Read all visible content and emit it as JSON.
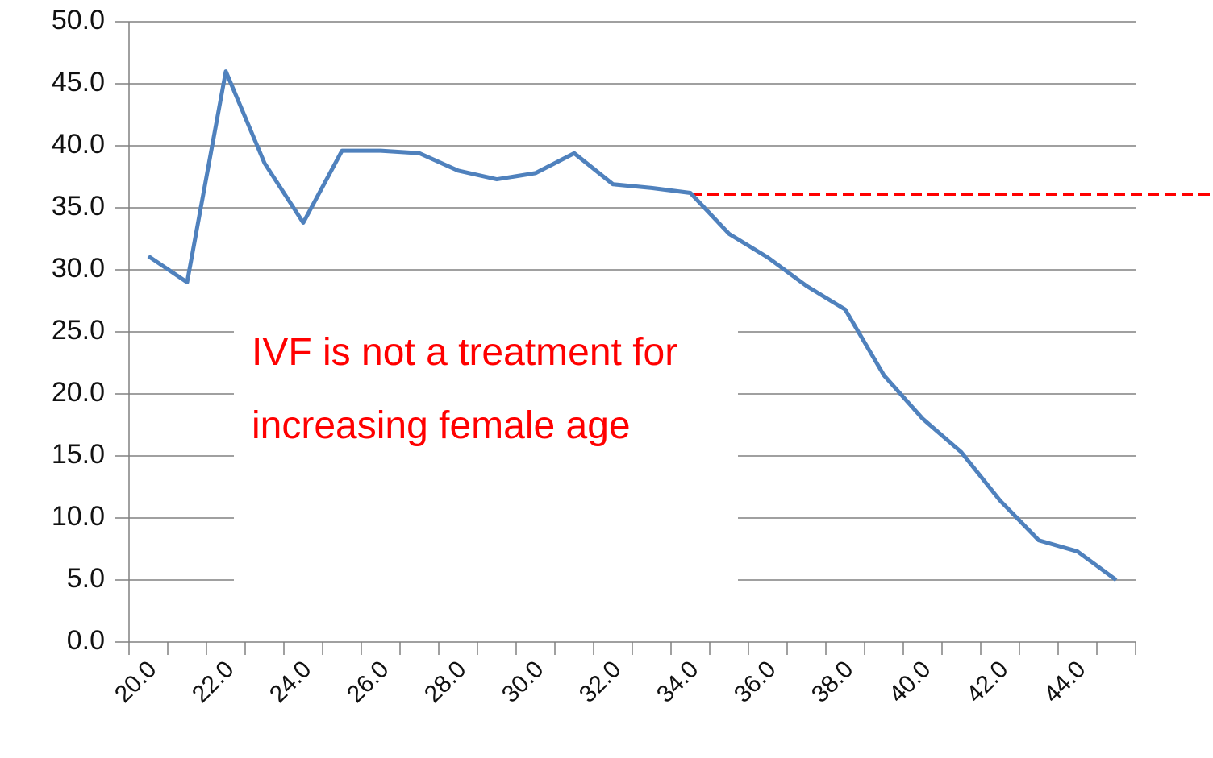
{
  "chart_data": {
    "type": "line",
    "categories": [
      "20.0",
      null,
      "22.0",
      null,
      "24.0",
      null,
      "26.0",
      null,
      "28.0",
      null,
      "30.0",
      null,
      "32.0",
      null,
      "34.0",
      null,
      "36.0",
      null,
      "38.0",
      null,
      "40.0",
      null,
      "42.0",
      null,
      "44.0",
      null
    ],
    "series": [
      {
        "color": "#4f81bd",
        "values": [
          31.1,
          29.0,
          46.0,
          38.6,
          33.8,
          39.6,
          39.6,
          39.4,
          38.0,
          37.3,
          37.8,
          39.4,
          36.9,
          36.6,
          36.2,
          32.9,
          31.0,
          28.7,
          26.8,
          21.5,
          18.0,
          15.3,
          11.4,
          8.2,
          7.3,
          5.0
        ]
      }
    ],
    "ylim": [
      0,
      50
    ],
    "yticks": [
      {
        "value": 0,
        "label": "0.0"
      },
      {
        "value": 5,
        "label": "5.0"
      },
      {
        "value": 10,
        "label": "10.0"
      },
      {
        "value": 15,
        "label": "15.0"
      },
      {
        "value": 20,
        "label": "20.0"
      },
      {
        "value": 25,
        "label": "25.0"
      },
      {
        "value": 30,
        "label": "30.0"
      },
      {
        "value": 35,
        "label": "35.0"
      },
      {
        "value": 40,
        "label": "40.0"
      },
      {
        "value": 45,
        "label": "45.0"
      },
      {
        "value": 50,
        "label": "50.0"
      }
    ],
    "grid": true,
    "reference_line": {
      "value": 36.1,
      "start": "34.0",
      "color": "#ff0000"
    },
    "annotation": "IVF is not a treatment for increasing female age",
    "annotation_color": "#ff0000"
  }
}
